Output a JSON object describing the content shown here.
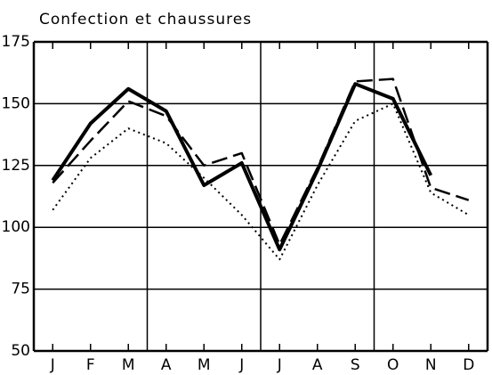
{
  "chart_data": {
    "type": "line",
    "title": "Confection et chaussures",
    "categories": [
      "J",
      "F",
      "M",
      "A",
      "M",
      "J",
      "J",
      "A",
      "S",
      "O",
      "N",
      "D"
    ],
    "series": [
      {
        "color": "#000000",
        "dash": "solid",
        "values": [
          119,
          142,
          156,
          147,
          117,
          126,
          91,
          123,
          158,
          152,
          121,
          null
        ]
      },
      {
        "color": "#000000",
        "dash": "dashed",
        "values": [
          118,
          135,
          151,
          145,
          125,
          130,
          93,
          124,
          159,
          160,
          116,
          111
        ]
      },
      {
        "color": "#000000",
        "dash": "dotted",
        "values": [
          107,
          128,
          140,
          134,
          120,
          105,
          87,
          117,
          143,
          150,
          114,
          105
        ]
      }
    ],
    "ylim": [
      50,
      175
    ],
    "yticks": [
      50,
      75,
      100,
      125,
      150,
      175
    ],
    "grid": true
  }
}
